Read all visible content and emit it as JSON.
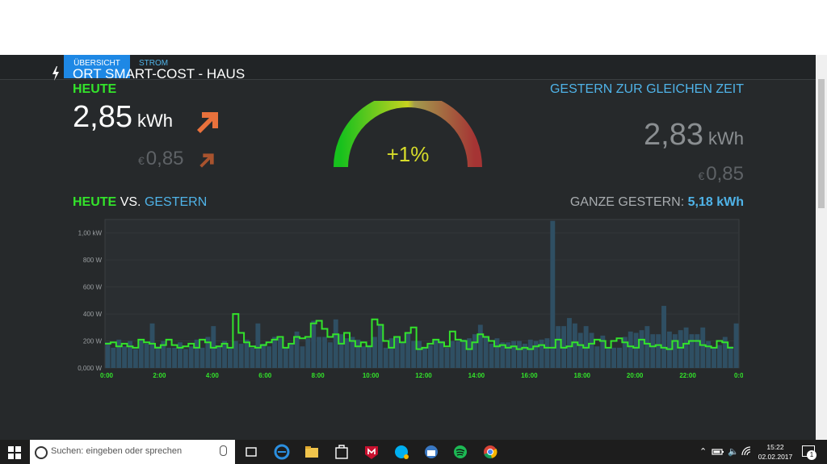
{
  "tabs": [
    {
      "label": "ÜBERSICHT",
      "active": true
    },
    {
      "label": "STROM",
      "active": false
    }
  ],
  "title": "ORT SMART-COST - HAUS",
  "today": {
    "label": "HEUTE",
    "value": "2,85",
    "unit": "kWh",
    "currency": "€",
    "cost": "0,85",
    "trend_icon": "arrow-up-right-icon"
  },
  "gauge": {
    "text": "+1%"
  },
  "yesterday": {
    "label": "GESTERN ZUR GLEICHEN ZEIT",
    "value": "2,83",
    "unit": "kWh",
    "currency": "€",
    "cost": "0,85"
  },
  "vs": {
    "today_label": "HEUTE",
    "vs_label": "VS.",
    "yesterday_label": "GESTERN"
  },
  "whole_yesterday": {
    "label": "GANZE GESTERN:",
    "value": "5,18 kWh"
  },
  "colors": {
    "accent_green": "#33e32b",
    "accent_blue": "#4fb3e8",
    "arrow_orange": "#e8713c",
    "bar": "#2f4f63",
    "tab_active": "#1e88e5"
  },
  "chart_data": {
    "type": "bar",
    "y_ticks": [
      "0,000 W",
      "200 W",
      "400 W",
      "600 W",
      "800 W",
      "1,00 kW"
    ],
    "x_ticks": [
      "0:00",
      "2:00",
      "4:00",
      "6:00",
      "8:00",
      "10:00",
      "12:00",
      "14:00",
      "16:00",
      "18:00",
      "20:00",
      "22:00",
      "0:00"
    ],
    "ylim": [
      0,
      1100
    ],
    "series": [
      {
        "values": [
          190,
          150,
          210,
          160,
          200,
          140,
          210,
          180,
          330,
          160,
          200,
          150,
          150,
          190,
          140,
          160,
          210,
          150,
          230,
          310,
          160,
          200,
          150,
          200,
          180,
          210,
          150,
          330,
          180,
          160,
          230,
          220,
          150,
          180,
          270,
          160,
          220,
          350,
          230,
          230,
          190,
          360,
          250,
          220,
          230,
          210,
          160,
          170,
          230,
          320,
          150,
          220,
          230,
          190,
          260,
          200,
          200,
          150,
          170,
          210,
          200,
          150,
          200,
          200,
          210,
          220,
          250,
          320,
          230,
          180,
          220,
          190,
          190,
          200,
          200,
          180,
          210,
          200,
          210,
          220,
          1090,
          310,
          310,
          370,
          330,
          260,
          310,
          260,
          160,
          240,
          150,
          150,
          150,
          230,
          270,
          260,
          280,
          310,
          250,
          250,
          460,
          270,
          250,
          280,
          300,
          250,
          250,
          300,
          200,
          150,
          170,
          230,
          160,
          330
        ]
      },
      {
        "values": [
          180,
          190,
          160,
          180,
          160,
          150,
          210,
          190,
          180,
          150,
          170,
          210,
          170,
          150,
          160,
          180,
          150,
          210,
          190,
          150,
          160,
          180,
          150,
          400,
          260,
          190,
          160,
          150,
          170,
          190,
          210,
          230,
          150,
          180,
          230,
          220,
          230,
          330,
          350,
          290,
          230,
          250,
          180,
          260,
          200,
          160,
          190,
          160,
          360,
          320,
          200,
          150,
          230,
          190,
          260,
          300,
          140,
          150,
          180,
          210,
          190,
          160,
          270,
          210,
          200,
          140,
          190,
          250,
          230,
          200,
          160,
          170,
          150,
          160,
          140,
          150,
          140,
          160,
          170,
          150,
          150,
          210,
          150,
          160,
          190,
          170,
          150,
          180,
          210,
          200,
          150,
          200,
          220,
          190,
          160,
          150,
          210,
          180,
          160,
          170,
          150,
          140,
          200,
          150,
          180,
          200,
          200,
          170,
          160,
          150,
          200,
          190,
          150
        ]
      }
    ]
  },
  "taskbar": {
    "search_placeholder": "Suchen: eingeben oder sprechen",
    "time": "15:22",
    "date": "02.02.2017",
    "notification_count": "1"
  }
}
